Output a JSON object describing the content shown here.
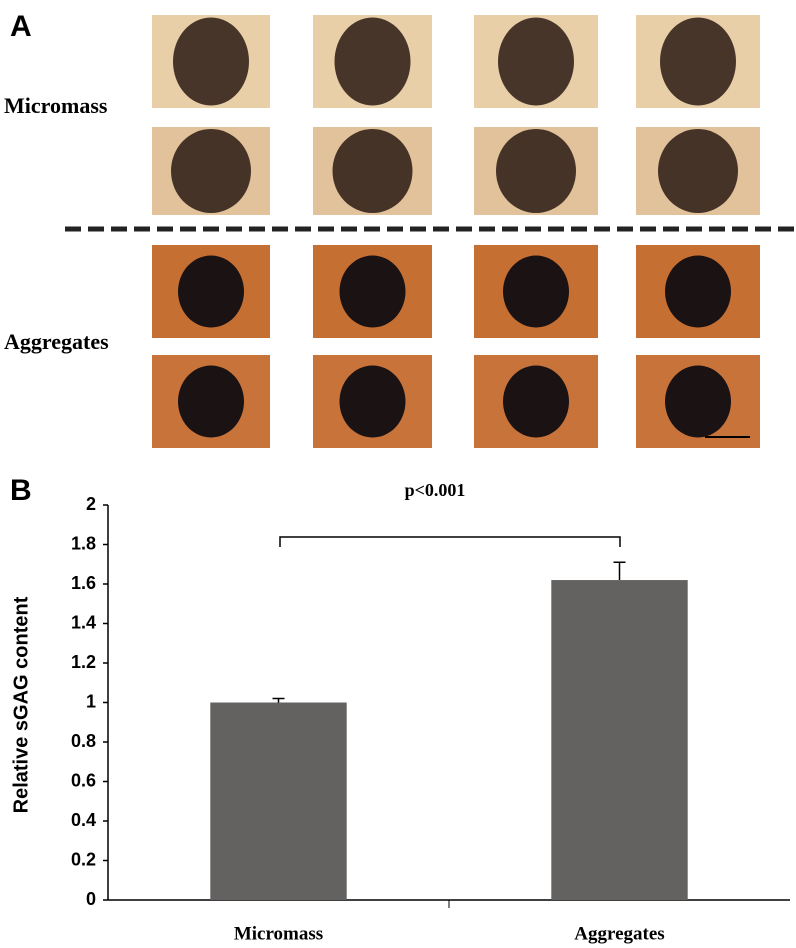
{
  "panels": {
    "a": {
      "label": "A",
      "rows": [
        "Micromass",
        "Aggregates"
      ]
    },
    "b": {
      "label": "B"
    }
  },
  "chart_data": {
    "type": "bar",
    "annotation": "p<0.001",
    "y_label": "Relative sGAG content",
    "categories": [
      "Micromass",
      "Aggregates"
    ],
    "values": [
      1.0,
      1.62
    ],
    "errors": [
      0.02,
      0.09
    ],
    "color": "#646161",
    "ylim": [
      0,
      2
    ],
    "yticks": [
      0,
      0.2,
      0.4,
      0.6,
      0.8,
      1,
      1.2,
      1.4,
      1.6,
      1.8,
      2
    ]
  }
}
